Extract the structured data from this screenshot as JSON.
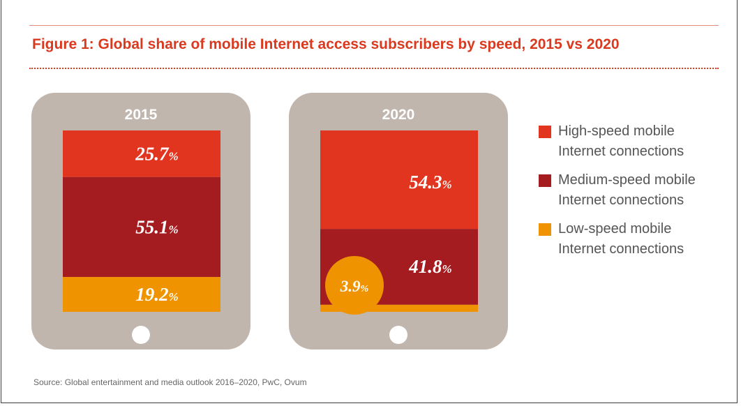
{
  "title": "Figure 1: Global share of mobile Internet access subscribers by speed, 2015 vs 2020",
  "source": "Source: Global entertainment and media outlook 2016–2020, PwC, Ovum",
  "colors": {
    "high": "#e2351f",
    "medium": "#a41c1f",
    "low": "#ef9400",
    "device": "#c1b6ae",
    "title": "#d93a1f"
  },
  "chart_data": {
    "type": "bar",
    "stacked": true,
    "categories": [
      "2015",
      "2020"
    ],
    "series": [
      {
        "name": "High-speed mobile Internet connections",
        "values": [
          25.7,
          54.3
        ],
        "labels": [
          "25.7%",
          "54.3%"
        ]
      },
      {
        "name": "Medium-speed mobile Internet connections",
        "values": [
          55.1,
          41.8
        ],
        "labels": [
          "55.1%",
          "41.8%"
        ]
      },
      {
        "name": "Low-speed mobile Internet connections",
        "values": [
          19.2,
          3.9
        ],
        "labels": [
          "19.2%",
          "3.9%"
        ]
      }
    ],
    "legend_position": "right",
    "legend": [
      {
        "line1": "High-speed mobile",
        "line2": "Internet connections"
      },
      {
        "line1": "Medium-speed mobile",
        "line2": "Internet connections"
      },
      {
        "line1": "Low-speed mobile",
        "line2": "Internet connections"
      }
    ],
    "ylim": [
      0,
      100
    ]
  }
}
